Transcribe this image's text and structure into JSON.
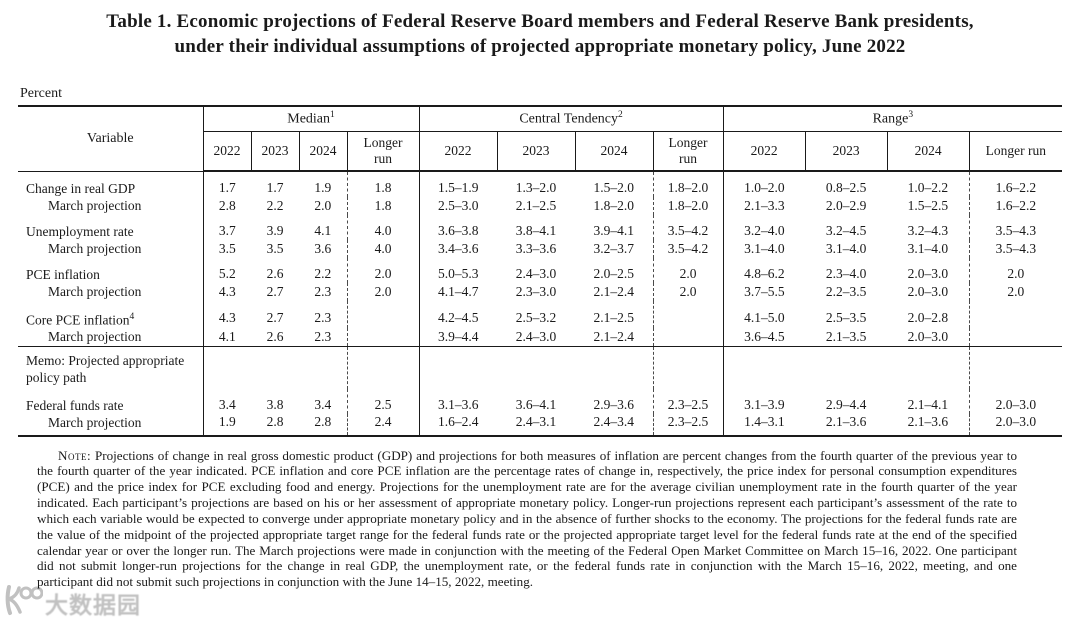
{
  "title": {
    "line1": "Table 1.  Economic projections of Federal Reserve Board members and Federal Reserve Bank presidents,",
    "line2": "under their individual assumptions of projected appropriate monetary policy, June 2022"
  },
  "unit_label": "Percent",
  "table": {
    "variable_header": "Variable",
    "groups": [
      {
        "key": "median",
        "label": "Median",
        "sup": "1"
      },
      {
        "key": "central-tendency",
        "label": "Central Tendency",
        "sup": "2"
      },
      {
        "key": "range",
        "label": "Range",
        "sup": "3"
      }
    ],
    "year_columns": [
      "2022",
      "2023",
      "2024",
      "Longer run"
    ],
    "rows": [
      {
        "label": "Change in real GDP",
        "sup": "",
        "indent": false,
        "pair_start": true,
        "section": false,
        "values": [
          "1.7",
          "1.7",
          "1.9",
          "1.8",
          "1.5–1.9",
          "1.3–2.0",
          "1.5–2.0",
          "1.8–2.0",
          "1.0–2.0",
          "0.8–2.5",
          "1.0–2.2",
          "1.6–2.2"
        ]
      },
      {
        "label": "March projection",
        "sup": "",
        "indent": true,
        "pair_start": false,
        "section": false,
        "values": [
          "2.8",
          "2.2",
          "2.0",
          "1.8",
          "2.5–3.0",
          "2.1–2.5",
          "1.8–2.0",
          "1.8–2.0",
          "2.1–3.3",
          "2.0–2.9",
          "1.5–2.5",
          "1.6–2.2"
        ]
      },
      {
        "label": "Unemployment rate",
        "sup": "",
        "indent": false,
        "pair_start": true,
        "section": false,
        "values": [
          "3.7",
          "3.9",
          "4.1",
          "4.0",
          "3.6–3.8",
          "3.8–4.1",
          "3.9–4.1",
          "3.5–4.2",
          "3.2–4.0",
          "3.2–4.5",
          "3.2–4.3",
          "3.5–4.3"
        ]
      },
      {
        "label": "March projection",
        "sup": "",
        "indent": true,
        "pair_start": false,
        "section": false,
        "values": [
          "3.5",
          "3.5",
          "3.6",
          "4.0",
          "3.4–3.6",
          "3.3–3.6",
          "3.2–3.7",
          "3.5–4.2",
          "3.1–4.0",
          "3.1–4.0",
          "3.1–4.0",
          "3.5–4.3"
        ]
      },
      {
        "label": "PCE inflation",
        "sup": "",
        "indent": false,
        "pair_start": true,
        "section": false,
        "values": [
          "5.2",
          "2.6",
          "2.2",
          "2.0",
          "5.0–5.3",
          "2.4–3.0",
          "2.0–2.5",
          "2.0",
          "4.8–6.2",
          "2.3–4.0",
          "2.0–3.0",
          "2.0"
        ]
      },
      {
        "label": "March projection",
        "sup": "",
        "indent": true,
        "pair_start": false,
        "section": false,
        "values": [
          "4.3",
          "2.7",
          "2.3",
          "2.0",
          "4.1–4.7",
          "2.3–3.0",
          "2.1–2.4",
          "2.0",
          "3.7–5.5",
          "2.2–3.5",
          "2.0–3.0",
          "2.0"
        ]
      },
      {
        "label": "Core PCE inflation",
        "sup": "4",
        "indent": false,
        "pair_start": true,
        "section": false,
        "values": [
          "4.3",
          "2.7",
          "2.3",
          "",
          "4.2–4.5",
          "2.5–3.2",
          "2.1–2.5",
          "",
          "4.1–5.0",
          "2.5–3.5",
          "2.0–2.8",
          ""
        ]
      },
      {
        "label": "March projection",
        "sup": "",
        "indent": true,
        "pair_start": false,
        "section": false,
        "values": [
          "4.1",
          "2.6",
          "2.3",
          "",
          "3.9–4.4",
          "2.4–3.0",
          "2.1–2.4",
          "",
          "3.6–4.5",
          "2.1–3.5",
          "2.0–3.0",
          ""
        ]
      },
      {
        "label": "Memo: Projected appropriate policy path",
        "sup": "",
        "indent": false,
        "pair_start": false,
        "section": true,
        "values": [
          "",
          "",
          "",
          "",
          "",
          "",
          "",
          "",
          "",
          "",
          "",
          ""
        ]
      },
      {
        "label": "Federal funds rate",
        "sup": "",
        "indent": false,
        "pair_start": true,
        "section": false,
        "values": [
          "3.4",
          "3.8",
          "3.4",
          "2.5",
          "3.1–3.6",
          "3.6–4.1",
          "2.9–3.6",
          "2.3–2.5",
          "3.1–3.9",
          "2.9–4.4",
          "2.1–4.1",
          "2.0–3.0"
        ]
      },
      {
        "label": "March projection",
        "sup": "",
        "indent": true,
        "pair_start": false,
        "section": false,
        "values": [
          "1.9",
          "2.8",
          "2.8",
          "2.4",
          "1.6–2.4",
          "2.4–3.1",
          "2.4–3.4",
          "2.3–2.5",
          "1.4–3.1",
          "2.1–3.6",
          "2.1–3.6",
          "2.0–3.0"
        ]
      }
    ]
  },
  "note": {
    "label": "Note:",
    "body": "Projections of change in real gross domestic product (GDP) and projections for both measures of inflation are percent changes from the fourth quarter of the previous year to the fourth quarter of the year indicated. PCE inflation and core PCE inflation are the percentage rates of change in, respectively, the price index for personal consumption expenditures (PCE) and the price index for PCE excluding food and energy. Projections for the unemployment rate are for the average civilian unemployment rate in the fourth quarter of the year indicated. Each participant’s projections are based on his or her assessment of appropriate monetary policy. Longer-run projections represent each participant’s assessment of the rate to which each variable would be expected to converge under appropriate monetary policy and in the absence of further shocks to the economy. The projections for the federal funds rate are the value of the midpoint of the projected appropriate target range for the federal funds rate or the projected appropriate target level for the federal funds rate at the end of the specified calendar year or over the longer run. The March projections were made in conjunction with the meeting of the Federal Open Market Committee on March 15–16, 2022. One participant did not submit longer-run projections for the change in real GDP, the unemployment rate, or the federal funds rate in conjunction with the March 15–16, 2022, meeting, and one participant did not submit such projections in conjunction with the June 14–15, 2022, meeting."
  },
  "watermark": {
    "text": "大数据园"
  }
}
